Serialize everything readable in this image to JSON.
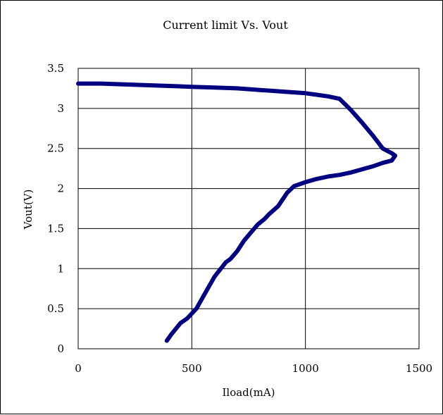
{
  "chart_data": {
    "type": "line",
    "title": "Current limit Vs. Vout",
    "xlabel": "Iload(mA)",
    "ylabel": "Vout(V)",
    "xlim": [
      0,
      1500
    ],
    "ylim": [
      0,
      3.5
    ],
    "xticks": [
      0,
      500,
      1000,
      1500
    ],
    "xtick_labels": [
      "0",
      "500",
      "1000",
      "1500"
    ],
    "yticks": [
      0,
      0.5,
      1,
      1.5,
      2,
      2.5,
      3,
      3.5
    ],
    "ytick_labels": [
      "0",
      "0.5",
      "1",
      "1.5",
      "2",
      "2.5",
      "3",
      "3.5"
    ],
    "grid": true,
    "legend": "none",
    "series": [
      {
        "color": "#000080",
        "x": [
          0,
          100,
          200,
          300,
          400,
          500,
          600,
          700,
          800,
          900,
          1000,
          1050,
          1100,
          1150,
          1200,
          1250,
          1300,
          1340,
          1380,
          1395,
          1380,
          1340,
          1300,
          1250,
          1200,
          1150,
          1100,
          1050,
          1000,
          950,
          920,
          880,
          840,
          820,
          790,
          760,
          730,
          700,
          670,
          650,
          600,
          570,
          540,
          520,
          500,
          480,
          450,
          430,
          410,
          390
        ],
        "y": [
          3.31,
          3.31,
          3.3,
          3.29,
          3.28,
          3.27,
          3.26,
          3.25,
          3.23,
          3.21,
          3.19,
          3.17,
          3.15,
          3.12,
          2.98,
          2.82,
          2.65,
          2.5,
          2.44,
          2.41,
          2.35,
          2.32,
          2.28,
          2.24,
          2.2,
          2.17,
          2.15,
          2.12,
          2.08,
          2.03,
          1.95,
          1.78,
          1.68,
          1.62,
          1.55,
          1.45,
          1.35,
          1.22,
          1.12,
          1.08,
          0.9,
          0.75,
          0.6,
          0.5,
          0.44,
          0.38,
          0.32,
          0.25,
          0.18,
          0.1
        ]
      }
    ]
  }
}
